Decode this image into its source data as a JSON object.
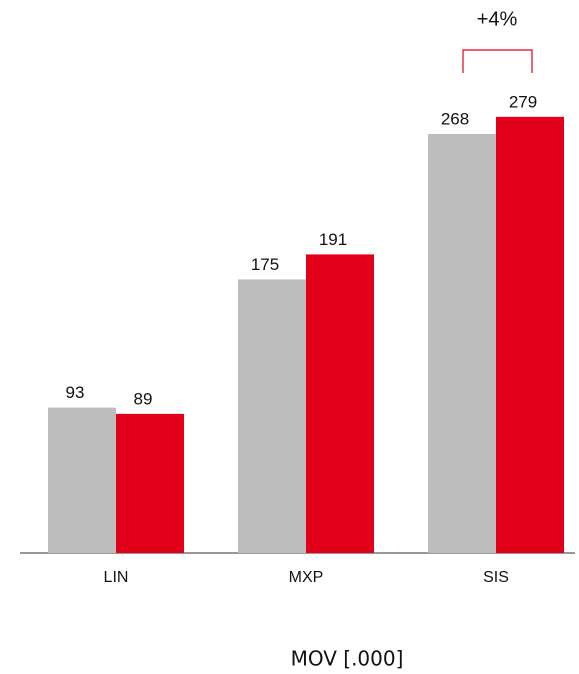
{
  "chart_data": {
    "type": "bar",
    "categories": [
      "LIN",
      "MXP",
      "SIS"
    ],
    "series": [
      {
        "color": "#bdbdbd",
        "values": [
          93,
          175,
          268
        ]
      },
      {
        "color": "#e2001a",
        "values": [
          89,
          191,
          279
        ]
      }
    ],
    "ylim": [
      0,
      300
    ],
    "x_label": "MOV [.000]",
    "annotation": "+4%"
  }
}
